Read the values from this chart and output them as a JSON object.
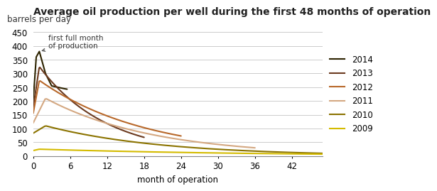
{
  "title": "Average oil production per well during the first 48 months of operation",
  "ylabel": "barrels per day",
  "xlabel": "month of operation",
  "annotation": "first full month\nof production",
  "ylim": [
    0,
    450
  ],
  "xlim": [
    0,
    47
  ],
  "yticks": [
    0,
    50,
    100,
    150,
    200,
    250,
    300,
    350,
    400,
    450
  ],
  "xticks": [
    0,
    6,
    12,
    18,
    24,
    30,
    36,
    42
  ],
  "colors": {
    "2014": "#2d2300",
    "2013": "#6b3a1f",
    "2012": "#b8682a",
    "2011": "#d4a882",
    "2010": "#8b7300",
    "2009": "#d4bb00"
  },
  "background_color": "#ffffff",
  "grid_color": "#cccccc",
  "title_fontsize": 10,
  "label_fontsize": 8.5,
  "tick_fontsize": 8.5
}
